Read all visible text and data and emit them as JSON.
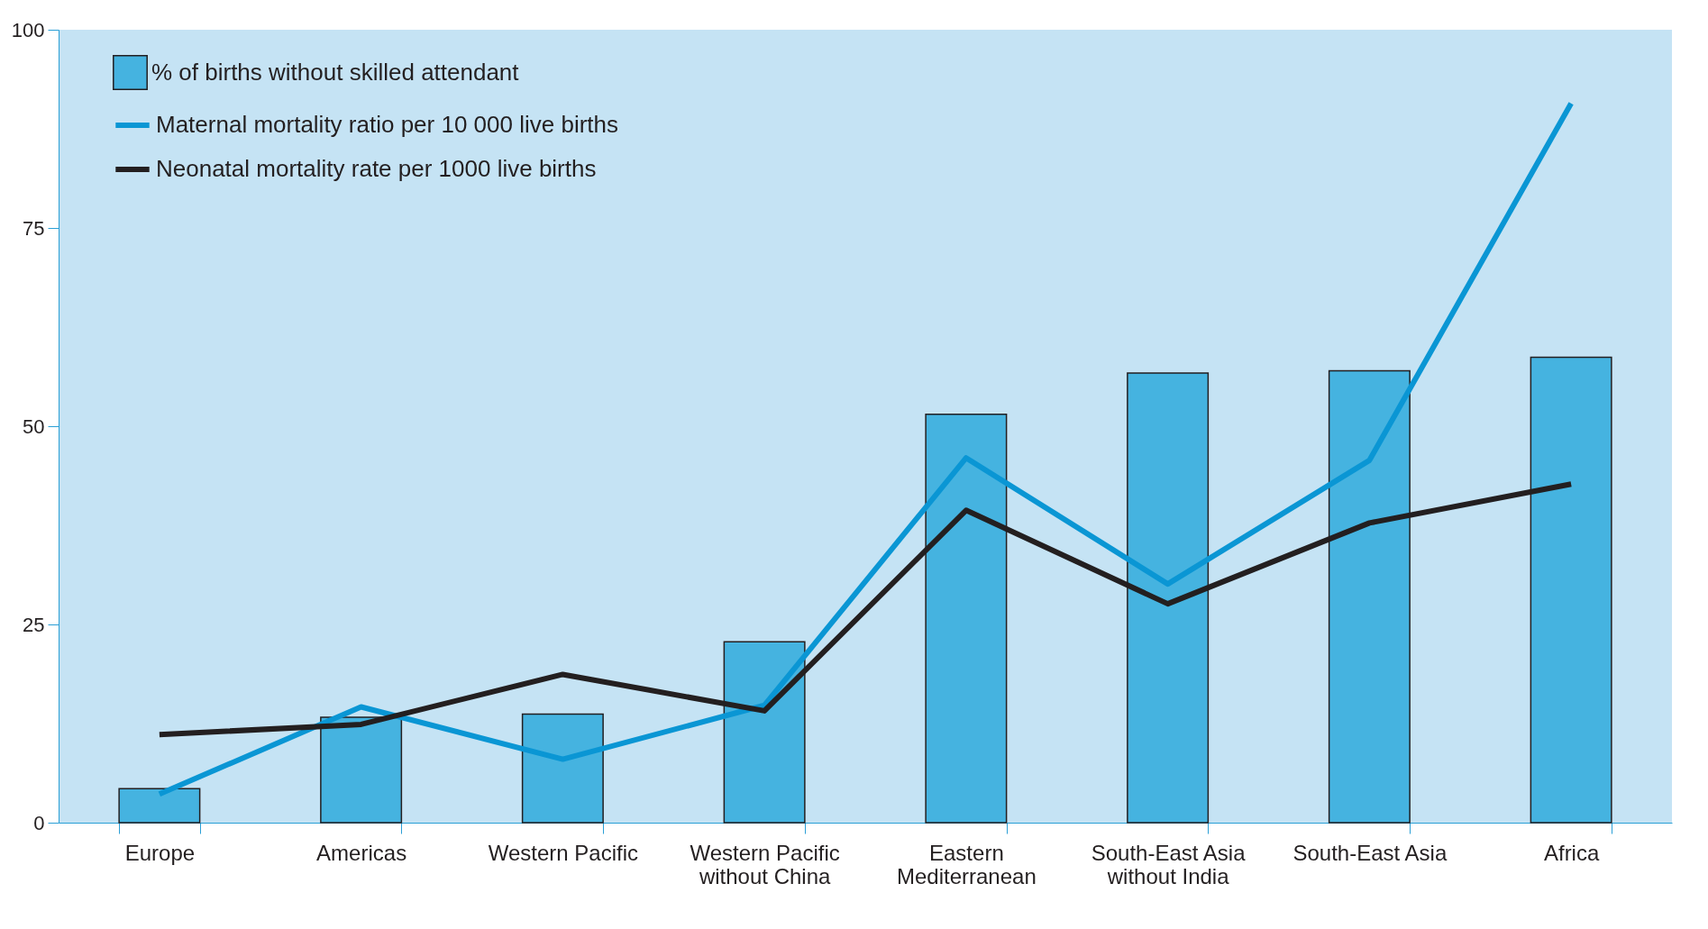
{
  "chart_data": {
    "type": "bar",
    "categories": [
      "Europe",
      "Americas",
      "Western Pacific",
      "Western Pacific without China",
      "Eastern Mediterranean",
      "South-East Asia without India",
      "South-East Asia",
      "Africa"
    ],
    "series": [
      {
        "name": "% of births without skilled attendant",
        "color": "#45b3e0",
        "values": [
          4.3,
          13.3,
          13.7,
          22.8,
          51.5,
          56.7,
          57.0,
          58.7
        ]
      },
      {
        "name": "Maternal mortality ratio per 10 000 live births",
        "type": "line",
        "color": "#0a96d4",
        "values": [
          3.6,
          14.6,
          8.0,
          14.8,
          46.0,
          30.1,
          45.7,
          90.7
        ]
      },
      {
        "name": "Neonatal mortality rate per 1000 live births",
        "type": "line",
        "color": "#231f20",
        "values": [
          11.1,
          12.4,
          18.7,
          14.1,
          39.4,
          27.6,
          37.8,
          42.7
        ]
      }
    ],
    "ylim": [
      0,
      100
    ],
    "yticks": [
      0,
      25,
      50,
      75,
      100
    ],
    "grid": false,
    "legend": "top left",
    "marker": "none",
    "line_style": "solid"
  }
}
